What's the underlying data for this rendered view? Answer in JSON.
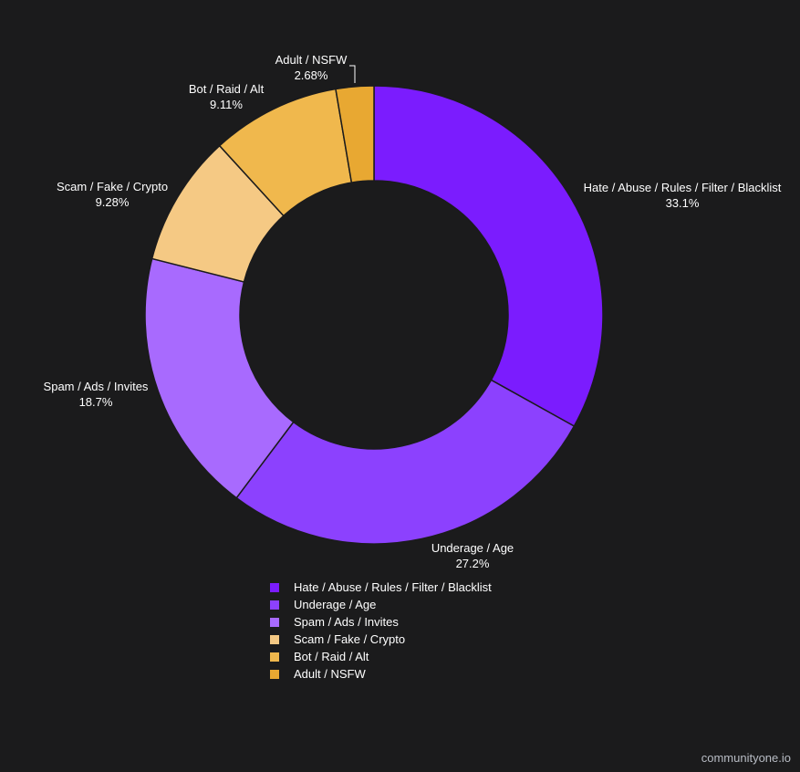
{
  "chart_data": {
    "type": "pie",
    "donut": true,
    "title": "",
    "legend_position": "bottom",
    "categories": [
      "Hate / Abuse / Rules / Filter / Blacklist",
      "Underage / Age",
      "Spam / Ads / Invites",
      "Scam / Fake / Crypto",
      "Bot / Raid / Alt",
      "Adult / NSFW"
    ],
    "values": [
      33.1,
      27.2,
      18.7,
      9.28,
      9.11,
      2.68
    ],
    "labels": [
      "33.1%",
      "27.2%",
      "18.7%",
      "9.28%",
      "9.11%",
      "2.68%"
    ],
    "colors": [
      "#7b1cfe",
      "#8c41fe",
      "#a86afe",
      "#f5c984",
      "#f0b84d",
      "#e8a832"
    ]
  },
  "watermark": "communityone.io"
}
